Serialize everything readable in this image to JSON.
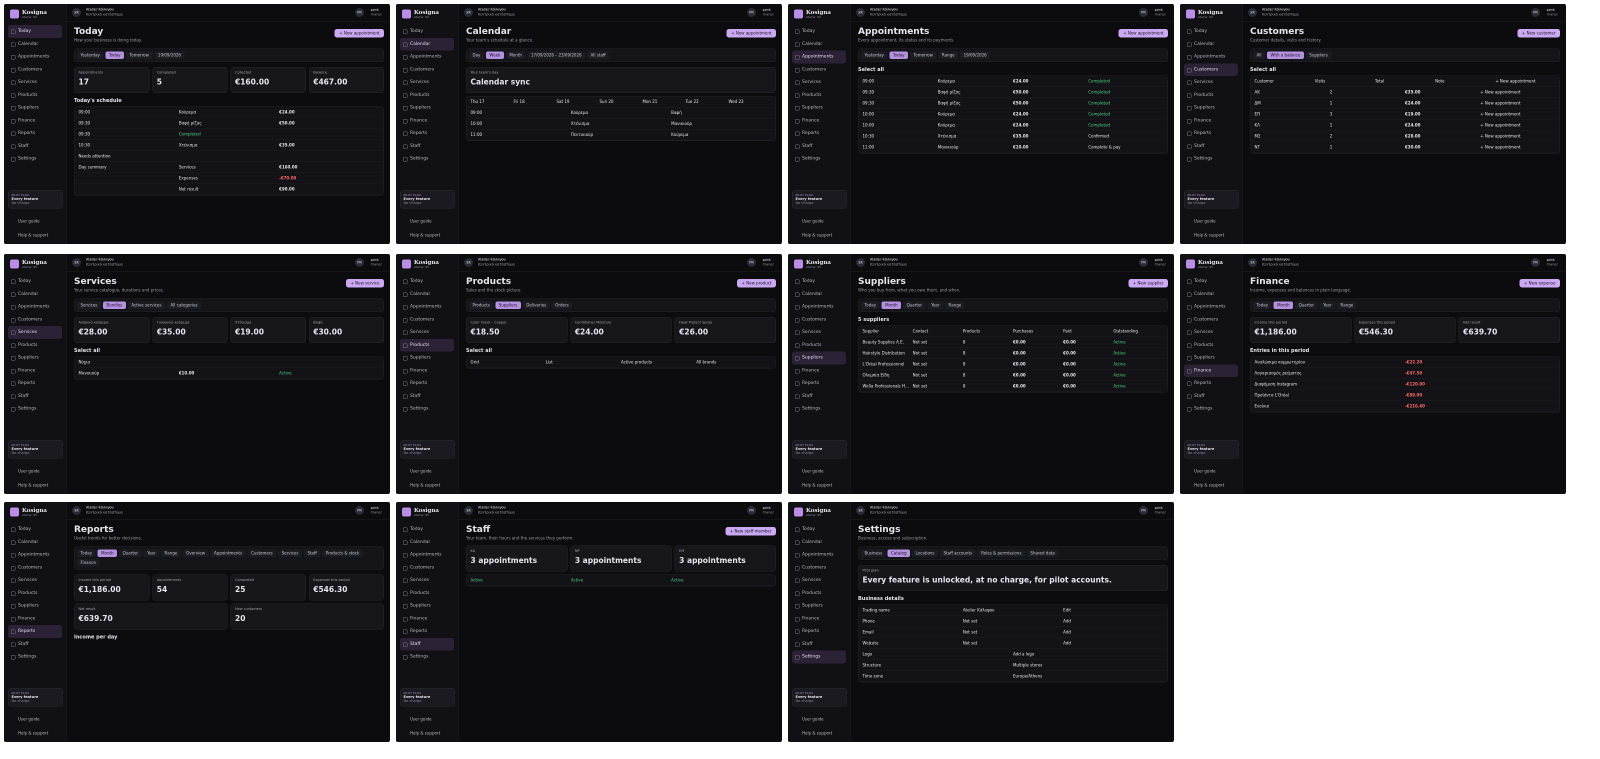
{
  "sidebar": {
    "brand": "Kosigna",
    "brand_sub": "Atelier OS",
    "nav": [
      "Today",
      "Calendar",
      "Appointments",
      "Customers",
      "Services",
      "Products",
      "Suppliers",
      "Finance",
      "Reports",
      "Staff",
      "Settings"
    ],
    "plan_label": "PILOT PLAN",
    "plan_title": "Every feature",
    "plan_note": "No charge.",
    "user_guide": "User guide",
    "help": "Help & support"
  },
  "topbar": {
    "initials": "SK",
    "business": "Atelier Κάλυψου",
    "location": "Κεντρικό κατάστημα",
    "user_initials": "PR",
    "user": "print",
    "user_role": "Owner"
  },
  "screens": [
    {
      "title": "Today",
      "subtitle": "How your business is doing today.",
      "button": "+ New appointment",
      "tabs": [
        "Yesterday",
        "Today",
        "Tomorrow",
        "19/09/2026"
      ],
      "cards": [
        {
          "label": "Appointments",
          "value": "17"
        },
        {
          "label": "Completed",
          "value": "5"
        },
        {
          "label": "Collected",
          "value": "€160.00"
        },
        {
          "label": "Balance",
          "value": "€467.00"
        }
      ],
      "section": "Today's schedule",
      "rows": [
        [
          "09:00",
          "Κούρεμα",
          "€24.00"
        ],
        [
          "09:30",
          "Βαφή ρίζας",
          "€50.00"
        ],
        [
          "09:30",
          "Completed",
          ""
        ],
        [
          "10:30",
          "Χτένισμα",
          "€35.00"
        ],
        [
          "Needs attention",
          "",
          ""
        ],
        [
          "Day summary",
          "Services",
          "€160.00"
        ],
        [
          "",
          "Expenses",
          "-€70.00"
        ],
        [
          "",
          "Net result",
          "€90.00"
        ]
      ]
    },
    {
      "title": "Calendar",
      "subtitle": "Your team's schedule at a glance.",
      "button": "+ New appointment",
      "tabs": [
        "Day",
        "Week",
        "Month",
        "17/09/2026 – 23/09/2026",
        "All staff"
      ],
      "cards": [
        {
          "label": "Your team's day",
          "value": "Calendar sync"
        }
      ],
      "section": "",
      "rows": [
        [
          "Thu 17",
          "Fri 18",
          "Sat 19",
          "Sun 20",
          "Mon 21",
          "Tue 22",
          "Wed 23"
        ],
        [
          "09:00",
          "Κούρεμα",
          "Βαφή"
        ],
        [
          "10:00",
          "Χτένισμα",
          "Μανικιούρ"
        ],
        [
          "11:00",
          "Πεντικιούρ",
          "Κούρεμα"
        ]
      ]
    },
    {
      "title": "Appointments",
      "subtitle": "Every appointment, its status and its payments.",
      "button": "+ New appointment",
      "tabs": [
        "Yesterday",
        "Today",
        "Tomorrow",
        "Range",
        "19/09/2026"
      ],
      "cards": [],
      "section": "Select all",
      "rows": [
        [
          "09:00",
          "Κούρεμα",
          "€24.00",
          "Completed"
        ],
        [
          "09:30",
          "Βαφή ρίζας",
          "€50.00",
          "Completed"
        ],
        [
          "09:30",
          "Βαφή ρίζας",
          "€50.00",
          "Completed"
        ],
        [
          "10:00",
          "Κούρεμα",
          "€24.00",
          "Completed"
        ],
        [
          "10:00",
          "Κούρεμα",
          "€24.00",
          "Completed"
        ],
        [
          "10:30",
          "Χτένισμα",
          "€35.00",
          "Confirmed"
        ],
        [
          "11:00",
          "Μανικιούρ",
          "€10.00",
          "Complete & pay"
        ]
      ]
    },
    {
      "title": "Customers",
      "subtitle": "Customer details, visits and history.",
      "button": "+ New customer",
      "tabs": [
        "All",
        "With a balance",
        "Suppliers"
      ],
      "cards": [],
      "section": "Select all",
      "rows": [
        [
          "Customer",
          "Visits",
          "Total",
          "Note",
          "+ New appointment"
        ],
        [
          "ΑΚ",
          "2",
          "€35.00",
          "+ New appointment"
        ],
        [
          "ΔΜ",
          "1",
          "€24.00",
          "+ New appointment"
        ],
        [
          "ΕΠ",
          "3",
          "€19.00",
          "+ New appointment"
        ],
        [
          "ΚΛ",
          "1",
          "€24.00",
          "+ New appointment"
        ],
        [
          "ΜΣ",
          "2",
          "€28.00",
          "+ New appointment"
        ],
        [
          "ΝΤ",
          "1",
          "€30.00",
          "+ New appointment"
        ]
      ]
    },
    {
      "title": "Services",
      "subtitle": "Your service catalogue, durations and prices.",
      "button": "+ New service",
      "tabs": [
        "Services",
        "Bundles",
        "Active services",
        "All categories"
      ],
      "cards": [
        {
          "label": "Ανδρικό κούρεμα",
          "value": "€28.00"
        },
        {
          "label": "Γυναικείο κούρεμα",
          "value": "€35.00"
        },
        {
          "label": "Χτένισμα",
          "value": "€19.00"
        },
        {
          "label": "Βαφή",
          "value": "€30.00"
        }
      ],
      "section": "Select all",
      "rows": [
        [
          "Νύχια"
        ],
        [
          "Μανικιούρ",
          "€10.00",
          "Active"
        ]
      ]
    },
    {
      "title": "Products",
      "subtitle": "Sales and the stock picture.",
      "button": "+ New product",
      "tabs": [
        "Products",
        "Suppliers",
        "Deliveries",
        "Orders"
      ],
      "cards": [
        {
          "label": "Color mask – Copper",
          "value": "€18.50"
        },
        {
          "label": "Conditioner Moisture",
          "value": "€24.00"
        },
        {
          "label": "Heat Protect Spray",
          "value": "€26.00"
        }
      ],
      "section": "Select all",
      "rows": [
        [
          "Grid",
          "List",
          "Active products",
          "All brands"
        ]
      ]
    },
    {
      "title": "Suppliers",
      "subtitle": "Who you buy from, what you owe them, and when.",
      "button": "+ New supplier",
      "tabs": [
        "Today",
        "Month",
        "Quarter",
        "Year",
        "Range"
      ],
      "cards": [],
      "section": "5 suppliers",
      "rows": [
        [
          "Supplier",
          "Contact",
          "Products",
          "Purchases",
          "Paid",
          "Outstanding"
        ],
        [
          "Beauty Supplies Α.Ε.",
          "Not set",
          "8",
          "€0.00",
          "€0.00",
          "Active"
        ],
        [
          "Hairstyle Distribution",
          "Not set",
          "8",
          "€0.00",
          "€0.00",
          "Active"
        ],
        [
          "L'Oréal Professionnel",
          "Not set",
          "8",
          "€0.00",
          "€0.00",
          "Active"
        ],
        [
          "Ολυμπία Είδη",
          "Not set",
          "8",
          "€0.00",
          "€0.00",
          "Active"
        ],
        [
          "Wella Professionals Hellas",
          "Not set",
          "8",
          "€0.00",
          "€0.00",
          "Active"
        ]
      ]
    },
    {
      "title": "Finance",
      "subtitle": "Income, expenses and balances in plain language.",
      "button": "+ New expense",
      "tabs": [
        "Today",
        "Month",
        "Quarter",
        "Year",
        "Range"
      ],
      "cards": [
        {
          "label": "Income this period",
          "value": "€1,186.00"
        },
        {
          "label": "Expenses this period",
          "value": "€546.30"
        },
        {
          "label": "Net result",
          "value": "€639.70"
        }
      ],
      "section": "Entries in this period",
      "rows": [
        [
          "Αναλώσιμα κομμωτηρίου",
          "-€22.20"
        ],
        [
          "Λογαριασμός ρεύματος",
          "-€47.50"
        ],
        [
          "Διαφήμιση Instagram",
          "-€120.00"
        ],
        [
          "Προϊόντα L'Oréal",
          "-€89.00"
        ],
        [
          "Ενοίκιο",
          "-€216.40"
        ]
      ]
    },
    {
      "title": "Reports",
      "subtitle": "Useful trends for better decisions.",
      "button": "",
      "tabs": [
        "Today",
        "Month",
        "Quarter",
        "Year",
        "Range",
        "Overview",
        "Appointments",
        "Customers",
        "Services",
        "Staff",
        "Products & stock",
        "Finance"
      ],
      "cards": [
        {
          "label": "Income this period",
          "value": "€1,186.00"
        },
        {
          "label": "Appointments",
          "value": "54"
        },
        {
          "label": "Completed",
          "value": "25"
        },
        {
          "label": "Expenses this period",
          "value": "€546.30"
        },
        {
          "label": "Net result",
          "value": "€639.70"
        },
        {
          "label": "New customers",
          "value": "20"
        }
      ],
      "section": "Income per day",
      "rows": []
    },
    {
      "title": "Staff",
      "subtitle": "Your team, their hours and the services they perform.",
      "button": "+ New staff member",
      "tabs": [],
      "cards": [
        {
          "label": "ΚΑ",
          "value": "3 appointments"
        },
        {
          "label": "ΝΡ",
          "value": "3 appointments"
        },
        {
          "label": "ΕΜ",
          "value": "3 appointments"
        }
      ],
      "section": "",
      "rows": [
        [
          "Active",
          "Active",
          "Active"
        ]
      ]
    },
    {
      "title": "Settings",
      "subtitle": "Business, access and subscription.",
      "button": "",
      "tabs": [
        "Business",
        "Catalog",
        "Locations",
        "Staff accounts",
        "Roles & permissions",
        "Shared data"
      ],
      "cards": [
        {
          "label": "Pilot plan",
          "value": "Every feature is unlocked, at no charge, for pilot accounts."
        }
      ],
      "section": "Business details",
      "rows": [
        [
          "Trading name",
          "Atelier Κάλυψου",
          "Edit"
        ],
        [
          "Phone",
          "Not set",
          "Add"
        ],
        [
          "Email",
          "Not set",
          "Add"
        ],
        [
          "Website",
          "Not set",
          "Add"
        ],
        [
          "Logo",
          "Add a logo"
        ],
        [
          "Structure",
          "Multiple stores"
        ],
        [
          "Time zone",
          "Europe/Athens"
        ]
      ]
    }
  ]
}
